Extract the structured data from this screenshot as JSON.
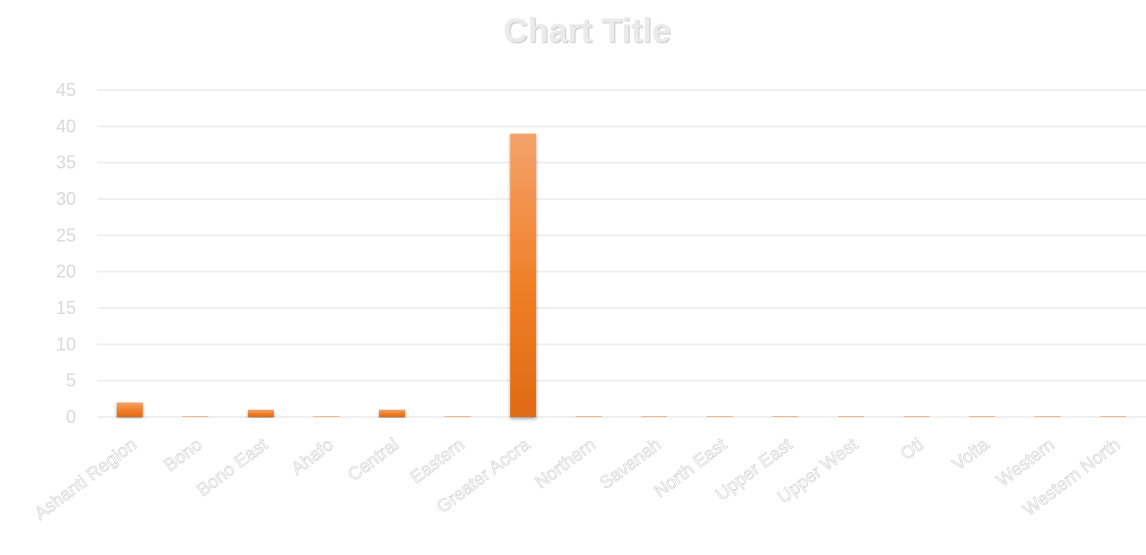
{
  "chart_data": {
    "type": "bar",
    "title": "Chart Title",
    "categories": [
      "Ashanti Region",
      "Bono",
      "Bono East",
      "Ahafo",
      "Central",
      "Eastern",
      "Greater Accra",
      "Northern",
      "Savanah",
      "North East",
      "Upper East",
      "Upper West",
      "Oti",
      "Volta",
      "Western",
      "Western North"
    ],
    "values": [
      2,
      0,
      1,
      0,
      1,
      0,
      39,
      0,
      0,
      0,
      0,
      0,
      0,
      0,
      0,
      0
    ],
    "yticks": [
      0,
      5,
      10,
      15,
      20,
      25,
      30,
      35,
      40,
      45
    ],
    "ylim": [
      0,
      45
    ],
    "grid": true,
    "legend": "none",
    "bar_color_top": "#f4a26a",
    "bar_color_mid": "#f07e26",
    "bar_color_bottom": "#e06915"
  }
}
